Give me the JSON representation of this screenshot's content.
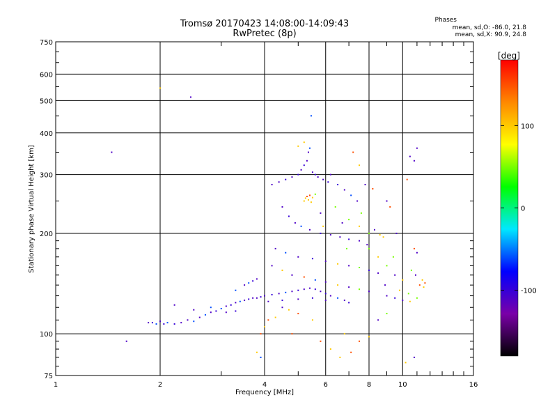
{
  "header": {
    "title_line1": "Tromsø 20170423 14:08:00-14:09:43",
    "title_line2": "RwPretec (8p)"
  },
  "phase_stats": {
    "heading": "Phases",
    "line_o": "mean, sd,O: -86.0, 21.8",
    "line_x": "mean, sd,X:  90.9, 24.8"
  },
  "chart_data": {
    "type": "scatter",
    "xlabel": "Frequency [MHz]",
    "ylabel": "Stationary phase Virtual Height [km]",
    "x_scale": "log",
    "y_scale": "log",
    "xlim": [
      1,
      16
    ],
    "ylim": [
      75,
      750
    ],
    "x_ticks": [
      1,
      2,
      4,
      6,
      8,
      10,
      16
    ],
    "x_tick_labels": [
      "1",
      "2",
      "4",
      "6",
      "8",
      "10",
      "16"
    ],
    "y_ticks": [
      75,
      100,
      200,
      300,
      400,
      500,
      600,
      750
    ],
    "y_tick_labels": [
      "75",
      "100",
      "200",
      "300",
      "400",
      "500",
      "600",
      "750"
    ],
    "grid": true,
    "colorbar": {
      "label": "[deg]",
      "range": [
        -180,
        180
      ],
      "ticks": [
        100,
        0,
        -100
      ],
      "tick_labels": [
        "100",
        "0",
        "-100"
      ],
      "colors": [
        "#000000",
        "#7a00a8",
        "#0000ff",
        "#00e8ff",
        "#00ff00",
        "#ffff00",
        "#ff8800",
        "#ff0000"
      ]
    },
    "points": [
      [
        1.45,
        350,
        -110
      ],
      [
        1.6,
        95,
        -110
      ],
      [
        2.0,
        545,
        100
      ],
      [
        2.45,
        512,
        -110
      ],
      [
        1.85,
        108,
        -110
      ],
      [
        1.9,
        108,
        -100
      ],
      [
        1.95,
        107,
        -60
      ],
      [
        2.0,
        109,
        -110
      ],
      [
        2.05,
        107,
        -100
      ],
      [
        2.1,
        108,
        -60
      ],
      [
        2.2,
        107,
        -100
      ],
      [
        2.3,
        108,
        -110
      ],
      [
        2.4,
        110,
        -110
      ],
      [
        2.5,
        109,
        -60
      ],
      [
        2.6,
        112,
        -110
      ],
      [
        2.7,
        114,
        -60
      ],
      [
        2.8,
        116,
        -110
      ],
      [
        2.9,
        117,
        -100
      ],
      [
        3.0,
        119,
        -60
      ],
      [
        3.1,
        121,
        -110
      ],
      [
        3.2,
        122,
        -100
      ],
      [
        3.3,
        124,
        -110
      ],
      [
        3.4,
        125,
        -60
      ],
      [
        3.5,
        126,
        -110
      ],
      [
        3.6,
        127,
        -100
      ],
      [
        3.7,
        128,
        -110
      ],
      [
        3.8,
        128,
        -110
      ],
      [
        3.9,
        129,
        -100
      ],
      [
        2.2,
        122,
        -110
      ],
      [
        2.5,
        118,
        -110
      ],
      [
        2.8,
        120,
        -60
      ],
      [
        3.1,
        116,
        -110
      ],
      [
        3.3,
        117,
        -100
      ],
      [
        3.3,
        135,
        -60
      ],
      [
        3.5,
        140,
        -110
      ],
      [
        3.6,
        142,
        -60
      ],
      [
        3.7,
        144,
        -100
      ],
      [
        3.8,
        146,
        -110
      ],
      [
        4.0,
        130,
        -110
      ],
      [
        4.2,
        131,
        -100
      ],
      [
        4.4,
        132,
        -110
      ],
      [
        4.6,
        133,
        -60
      ],
      [
        4.8,
        134,
        -110
      ],
      [
        5.0,
        135,
        -100
      ],
      [
        5.2,
        136,
        -110
      ],
      [
        5.4,
        137,
        -110
      ],
      [
        5.6,
        136,
        -100
      ],
      [
        5.8,
        134,
        -110
      ],
      [
        6.0,
        132,
        -100
      ],
      [
        6.2,
        130,
        -110
      ],
      [
        6.5,
        128,
        -60
      ],
      [
        6.8,
        126,
        -110
      ],
      [
        7.0,
        124,
        -100
      ],
      [
        4.1,
        125,
        -110
      ],
      [
        4.5,
        126,
        -100
      ],
      [
        5.0,
        127,
        -110
      ],
      [
        5.5,
        128,
        -100
      ],
      [
        6.0,
        126,
        -110
      ],
      [
        4.2,
        280,
        -110
      ],
      [
        4.4,
        285,
        -110
      ],
      [
        4.6,
        290,
        -100
      ],
      [
        4.8,
        295,
        -110
      ],
      [
        5.0,
        300,
        -100
      ],
      [
        5.1,
        310,
        -110
      ],
      [
        5.2,
        320,
        -100
      ],
      [
        5.3,
        330,
        -110
      ],
      [
        5.35,
        350,
        -110
      ],
      [
        5.4,
        360,
        -60
      ],
      [
        5.5,
        305,
        -110
      ],
      [
        5.6,
        300,
        -100
      ],
      [
        5.7,
        295,
        -110
      ],
      [
        5.9,
        290,
        -110
      ],
      [
        6.1,
        285,
        -100
      ],
      [
        5.2,
        250,
        100
      ],
      [
        5.25,
        255,
        100
      ],
      [
        5.3,
        258,
        150
      ],
      [
        5.35,
        252,
        100
      ],
      [
        5.4,
        260,
        150
      ],
      [
        5.45,
        248,
        100
      ],
      [
        5.5,
        256,
        100
      ],
      [
        5.6,
        262,
        50
      ],
      [
        5.45,
        450,
        -60
      ],
      [
        5.2,
        375,
        100
      ],
      [
        5.0,
        365,
        100
      ],
      [
        4.5,
        240,
        -110
      ],
      [
        4.7,
        225,
        -100
      ],
      [
        4.9,
        215,
        -110
      ],
      [
        5.1,
        210,
        -60
      ],
      [
        5.4,
        205,
        -110
      ],
      [
        5.8,
        200,
        -100
      ],
      [
        6.2,
        198,
        -110
      ],
      [
        6.6,
        195,
        -110
      ],
      [
        7.0,
        192,
        -100
      ],
      [
        7.5,
        190,
        -110
      ],
      [
        4.3,
        180,
        -110
      ],
      [
        4.6,
        175,
        -60
      ],
      [
        5.0,
        170,
        -110
      ],
      [
        5.5,
        168,
        -100
      ],
      [
        6.0,
        165,
        -110
      ],
      [
        6.5,
        162,
        100
      ],
      [
        7.0,
        160,
        -110
      ],
      [
        7.5,
        158,
        50
      ],
      [
        8.0,
        155,
        -100
      ],
      [
        8.5,
        152,
        -110
      ],
      [
        4.2,
        160,
        -110
      ],
      [
        4.5,
        155,
        100
      ],
      [
        4.8,
        150,
        -110
      ],
      [
        5.2,
        148,
        150
      ],
      [
        5.6,
        145,
        -60
      ],
      [
        6.0,
        143,
        -110
      ],
      [
        6.5,
        140,
        100
      ],
      [
        7.0,
        138,
        -110
      ],
      [
        7.5,
        136,
        50
      ],
      [
        8.0,
        134,
        -110
      ],
      [
        6.2,
        300,
        -110
      ],
      [
        6.5,
        280,
        -100
      ],
      [
        6.8,
        270,
        -110
      ],
      [
        7.1,
        260,
        -60
      ],
      [
        7.4,
        250,
        -110
      ],
      [
        7.0,
        220,
        50
      ],
      [
        7.5,
        210,
        100
      ],
      [
        8.0,
        200,
        50
      ],
      [
        8.3,
        205,
        -110
      ],
      [
        8.6,
        198,
        100
      ],
      [
        8.0,
        180,
        50
      ],
      [
        8.5,
        170,
        100
      ],
      [
        9.0,
        160,
        50
      ],
      [
        9.5,
        150,
        -110
      ],
      [
        10.0,
        145,
        100
      ],
      [
        9.0,
        130,
        -110
      ],
      [
        9.5,
        128,
        -100
      ],
      [
        10.0,
        126,
        -110
      ],
      [
        10.5,
        125,
        100
      ],
      [
        11.0,
        128,
        50
      ],
      [
        11.2,
        140,
        150
      ],
      [
        11.5,
        138,
        100
      ],
      [
        11.0,
        175,
        -110
      ],
      [
        10.8,
        180,
        150
      ],
      [
        10.6,
        155,
        50
      ],
      [
        10.5,
        340,
        -110
      ],
      [
        10.8,
        330,
        -110
      ],
      [
        11.0,
        360,
        -110
      ],
      [
        10.3,
        290,
        150
      ],
      [
        7.2,
        350,
        150
      ],
      [
        7.5,
        320,
        100
      ],
      [
        7.8,
        280,
        -110
      ],
      [
        9.0,
        250,
        -110
      ],
      [
        9.2,
        240,
        150
      ],
      [
        6.8,
        100,
        100
      ],
      [
        7.5,
        95,
        150
      ],
      [
        8.0,
        98,
        100
      ],
      [
        8.5,
        110,
        -110
      ],
      [
        9.0,
        115,
        50
      ],
      [
        5.8,
        95,
        150
      ],
      [
        6.2,
        90,
        100
      ],
      [
        6.6,
        85,
        100
      ],
      [
        7.1,
        88,
        150
      ],
      [
        10.2,
        82,
        100
      ],
      [
        10.8,
        85,
        -110
      ],
      [
        3.8,
        88,
        100
      ],
      [
        3.9,
        85,
        -60
      ],
      [
        4.8,
        100,
        150
      ],
      [
        5.5,
        110,
        100
      ],
      [
        4.1,
        110,
        150
      ],
      [
        4.3,
        112,
        100
      ],
      [
        4.5,
        120,
        -110
      ],
      [
        4.7,
        118,
        100
      ],
      [
        5.0,
        115,
        150
      ],
      [
        3.9,
        100,
        150
      ],
      [
        4.0,
        105,
        100
      ],
      [
        8.2,
        272,
        150
      ],
      [
        7.6,
        230,
        50
      ],
      [
        6.9,
        180,
        50
      ],
      [
        6.4,
        240,
        50
      ],
      [
        5.8,
        230,
        -110
      ],
      [
        5.9,
        210,
        100
      ],
      [
        6.7,
        215,
        -110
      ],
      [
        7.9,
        185,
        -110
      ],
      [
        8.8,
        195,
        100
      ],
      [
        9.6,
        200,
        -110
      ],
      [
        9.4,
        170,
        50
      ],
      [
        8.9,
        140,
        -110
      ],
      [
        9.8,
        135,
        100
      ],
      [
        10.4,
        132,
        50
      ],
      [
        10.9,
        150,
        -110
      ],
      [
        11.4,
        145,
        100
      ],
      [
        11.6,
        142,
        150
      ]
    ]
  }
}
